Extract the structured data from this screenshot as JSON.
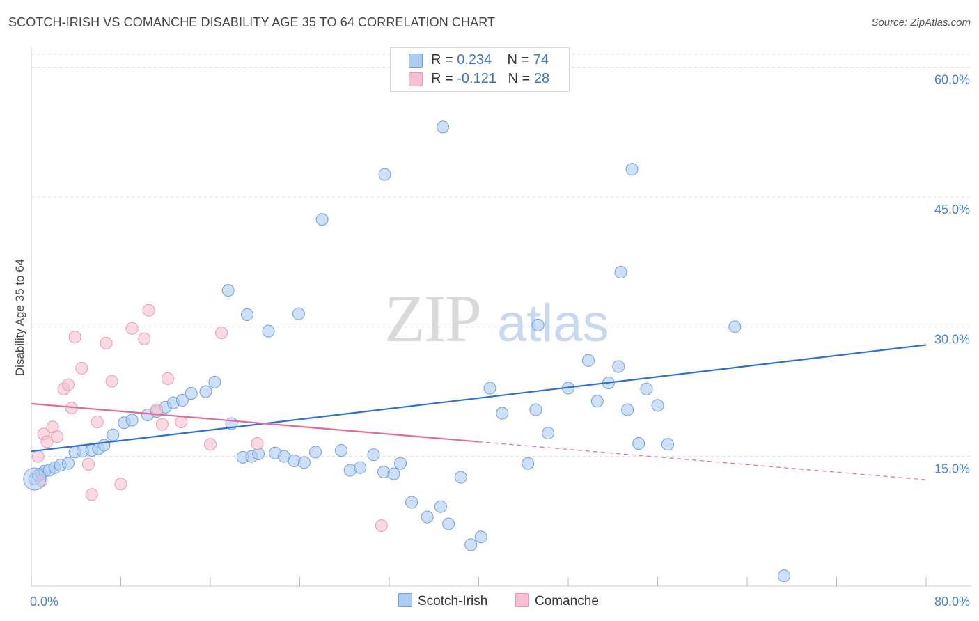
{
  "header": {
    "title": "SCOTCH-IRISH VS COMANCHE DISABILITY AGE 35 TO 64 CORRELATION CHART",
    "source": "Source: ZipAtlas.com"
  },
  "watermark": {
    "zip": "ZIP",
    "atlas": "atlas"
  },
  "legend": {
    "rows": [
      {
        "r_label": "R =",
        "r_value": "0.234",
        "n_label": "N =",
        "n_value": "74",
        "color": "#aecbf1"
      },
      {
        "r_label": "R =",
        "r_value": "-0.121",
        "n_label": "N =",
        "n_value": "28",
        "color": "#f7bfcf"
      }
    ]
  },
  "bottom_legend": [
    {
      "label": "Scotch-Irish",
      "color": "#aecbf1"
    },
    {
      "label": "Comanche",
      "color": "#f7bfcf"
    }
  ],
  "colors": {
    "blue_fill": "#aecbf1",
    "blue_stroke": "#6f9fdb",
    "blue_line": "#2f6fd0",
    "pink_fill": "#f7bfcf",
    "pink_stroke": "#e99ab2",
    "pink_line": "#e06b97",
    "grid": "#dddddd",
    "tick_label": "#4a7fcf"
  },
  "chart_data": {
    "type": "scatter",
    "title": "SCOTCH-IRISH VS COMANCHE DISABILITY AGE 35 TO 64 CORRELATION CHART",
    "xlabel": "",
    "ylabel": "Disability Age 35 to 64",
    "xlim": [
      0,
      80
    ],
    "ylim": [
      0,
      61.5
    ],
    "y_ticks": [
      {
        "value": 15,
        "label": "15.0%"
      },
      {
        "value": 30,
        "label": "30.0%"
      },
      {
        "value": 45,
        "label": "45.0%"
      },
      {
        "value": 60,
        "label": "60.0%"
      }
    ],
    "x_tick_labels": [
      {
        "value": 0,
        "label": "0.0%"
      },
      {
        "value": 80,
        "label": "80.0%"
      }
    ],
    "x_minor_ticks": [
      0,
      8,
      16,
      24,
      32,
      40,
      48,
      56,
      64,
      72,
      80
    ],
    "grid": true,
    "series": [
      {
        "name": "Scotch-Irish",
        "trend": {
          "x0": 0,
          "y0": 15.6,
          "x1": 80,
          "y1": 27.9
        },
        "points": [
          [
            0.3,
            12.4
          ],
          [
            0.6,
            12.8
          ],
          [
            0.9,
            13.0
          ],
          [
            1.2,
            13.3
          ],
          [
            1.6,
            13.4
          ],
          [
            2.1,
            13.7
          ],
          [
            2.6,
            14.0
          ],
          [
            3.3,
            14.2
          ],
          [
            3.9,
            15.5
          ],
          [
            4.6,
            15.6
          ],
          [
            5.4,
            15.7
          ],
          [
            6.0,
            15.9
          ],
          [
            6.5,
            16.3
          ],
          [
            7.3,
            17.5
          ],
          [
            8.3,
            18.9
          ],
          [
            9.0,
            19.2
          ],
          [
            10.4,
            19.8
          ],
          [
            11.2,
            20.2
          ],
          [
            12.0,
            20.7
          ],
          [
            12.7,
            21.2
          ],
          [
            13.5,
            21.5
          ],
          [
            14.3,
            22.3
          ],
          [
            15.6,
            22.5
          ],
          [
            16.4,
            23.6
          ],
          [
            17.9,
            18.8
          ],
          [
            18.9,
            14.9
          ],
          [
            19.7,
            15.0
          ],
          [
            20.3,
            15.3
          ],
          [
            21.8,
            15.4
          ],
          [
            22.6,
            15.0
          ],
          [
            23.5,
            14.5
          ],
          [
            24.4,
            14.3
          ],
          [
            25.4,
            15.5
          ],
          [
            27.7,
            15.7
          ],
          [
            28.5,
            13.4
          ],
          [
            29.4,
            13.7
          ],
          [
            30.6,
            15.2
          ],
          [
            31.5,
            13.2
          ],
          [
            32.4,
            13.0
          ],
          [
            33.0,
            14.2
          ],
          [
            34.0,
            9.7
          ],
          [
            35.4,
            8.0
          ],
          [
            36.6,
            9.2
          ],
          [
            37.3,
            7.2
          ],
          [
            38.4,
            12.6
          ],
          [
            39.3,
            4.8
          ],
          [
            40.2,
            5.7
          ],
          [
            41.0,
            22.9
          ],
          [
            42.1,
            20.0
          ],
          [
            44.4,
            14.2
          ],
          [
            45.1,
            20.4
          ],
          [
            46.2,
            17.7
          ],
          [
            48.0,
            22.9
          ],
          [
            49.8,
            26.1
          ],
          [
            50.6,
            21.4
          ],
          [
            51.6,
            23.5
          ],
          [
            52.5,
            25.4
          ],
          [
            53.3,
            20.4
          ],
          [
            54.3,
            16.5
          ],
          [
            55.0,
            22.8
          ],
          [
            56.0,
            20.9
          ],
          [
            56.9,
            16.4
          ],
          [
            17.6,
            34.2
          ],
          [
            19.3,
            31.4
          ],
          [
            21.2,
            29.5
          ],
          [
            23.9,
            31.5
          ],
          [
            26.0,
            42.4
          ],
          [
            31.6,
            47.6
          ],
          [
            36.8,
            53.1
          ],
          [
            45.3,
            30.2
          ],
          [
            52.7,
            36.3
          ],
          [
            53.7,
            48.2
          ],
          [
            67.3,
            1.2
          ],
          [
            62.9,
            30.0
          ]
        ]
      },
      {
        "name": "Comanche",
        "trend": {
          "x0": 0,
          "y0": 21.1,
          "x1": 40,
          "y1": 16.7,
          "dashed_to_x": 80,
          "dashed_to_y": 12.3
        },
        "points": [
          [
            0.6,
            15.0
          ],
          [
            0.9,
            12.2
          ],
          [
            1.1,
            17.6
          ],
          [
            1.4,
            16.7
          ],
          [
            1.9,
            18.4
          ],
          [
            2.3,
            17.3
          ],
          [
            2.9,
            22.8
          ],
          [
            3.3,
            23.3
          ],
          [
            3.6,
            20.6
          ],
          [
            3.9,
            28.8
          ],
          [
            4.5,
            25.2
          ],
          [
            5.1,
            14.1
          ],
          [
            5.4,
            10.6
          ],
          [
            5.9,
            19.0
          ],
          [
            6.7,
            28.1
          ],
          [
            7.2,
            23.7
          ],
          [
            8.0,
            11.8
          ],
          [
            9.0,
            29.8
          ],
          [
            10.1,
            28.6
          ],
          [
            10.5,
            31.9
          ],
          [
            11.2,
            20.4
          ],
          [
            11.7,
            18.7
          ],
          [
            12.2,
            24.0
          ],
          [
            13.4,
            19.0
          ],
          [
            16.0,
            16.4
          ],
          [
            17.0,
            29.3
          ],
          [
            20.2,
            16.5
          ],
          [
            31.3,
            7.0
          ]
        ]
      }
    ]
  }
}
